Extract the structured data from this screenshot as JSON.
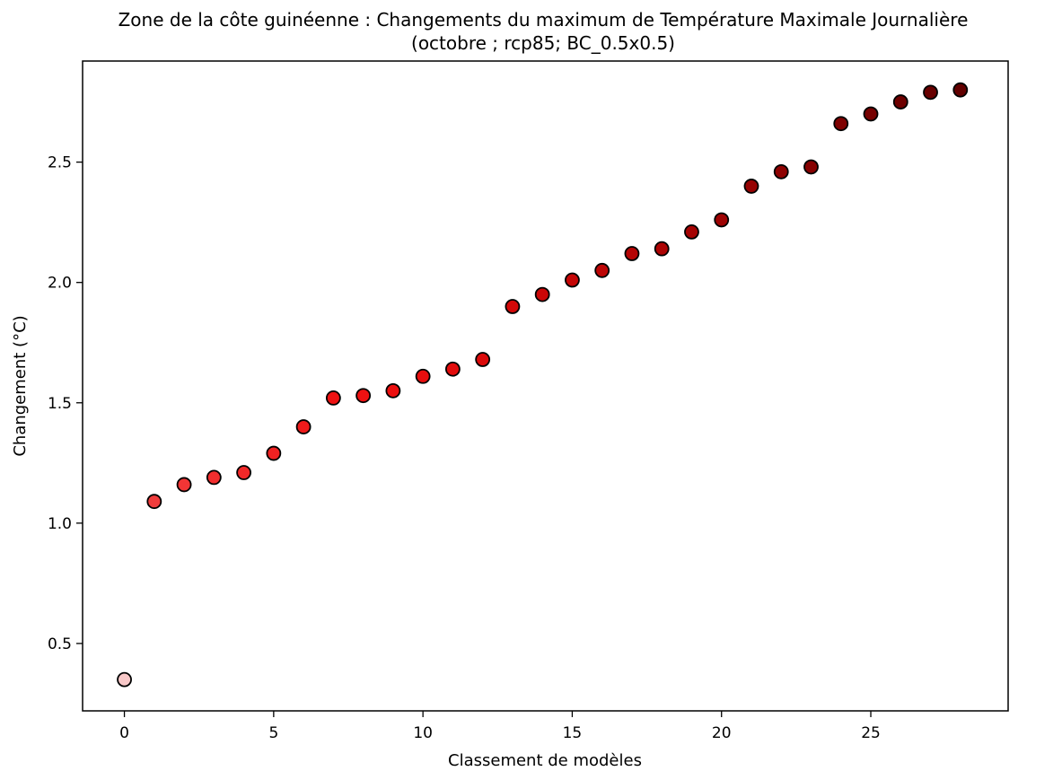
{
  "chart_data": {
    "type": "scatter",
    "title": "Zone de la côte guinéenne : Changements du maximum de Température Maximale Journalière",
    "subtitle": "(octobre ; rcp85; BC_0.5x0.5)",
    "xlabel": "Classement de modèles",
    "ylabel": "Changement ( $^\\circ$C)",
    "ylabel_display": "Changement (°C)",
    "xlim": [
      -1.4,
      29.6
    ],
    "ylim": [
      0.22,
      2.92
    ],
    "xticks": [
      0,
      5,
      10,
      15,
      20,
      25
    ],
    "xtick_labels": [
      "0",
      "5",
      "10",
      "15",
      "20",
      "25"
    ],
    "yticks": [
      0.5,
      1.0,
      1.5,
      2.0,
      2.5
    ],
    "ytick_labels": [
      "0.5",
      "1.0",
      "1.5",
      "2.0",
      "2.5"
    ],
    "grid": false,
    "marker_edge_color": "#000000",
    "x": [
      0,
      1,
      2,
      3,
      4,
      5,
      6,
      7,
      8,
      9,
      10,
      11,
      12,
      13,
      14,
      15,
      16,
      17,
      18,
      19,
      20,
      21,
      22,
      23,
      24,
      25,
      26,
      27,
      28
    ],
    "y": [
      0.35,
      1.09,
      1.16,
      1.19,
      1.21,
      1.29,
      1.4,
      1.52,
      1.53,
      1.55,
      1.61,
      1.64,
      1.68,
      1.9,
      1.95,
      2.01,
      2.05,
      2.12,
      2.14,
      2.21,
      2.26,
      2.4,
      2.46,
      2.48,
      2.66,
      2.7,
      2.75,
      2.79,
      2.8
    ],
    "colors": [
      "#f8c8c8",
      "#f03c3c",
      "#f23535",
      "#f22e2e",
      "#f12828",
      "#f02222",
      "#ee1b1b",
      "#ee1212",
      "#ee1111",
      "#ec0f0f",
      "#e80e0e",
      "#e20c0c",
      "#db0a0a",
      "#d30808",
      "#cc0707",
      "#c50606",
      "#bd0505",
      "#b50404",
      "#ad0404",
      "#a50303",
      "#9e0303",
      "#960202",
      "#8e0202",
      "#860101",
      "#7e0101",
      "#760101",
      "#6e0000",
      "#680000",
      "#620000"
    ]
  }
}
